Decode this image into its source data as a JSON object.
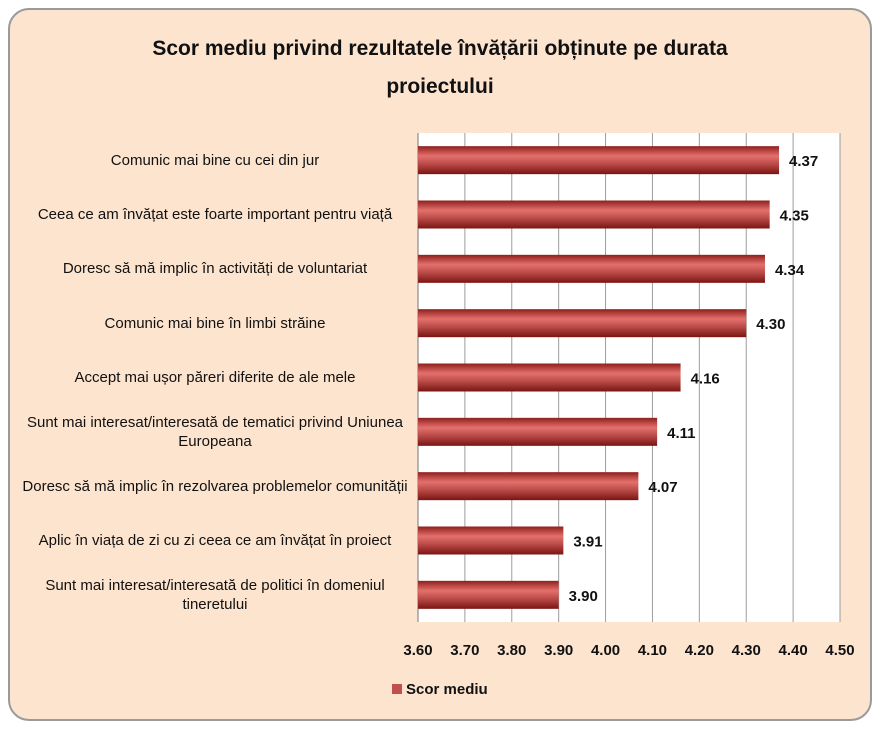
{
  "chart_data": {
    "type": "bar",
    "orientation": "horizontal",
    "title": "Scor mediu privind rezultatele învățării obținute pe durata proiectului",
    "categories": [
      "Comunic mai bine cu cei din jur",
      "Ceea ce am învățat este foarte important pentru viață",
      "Doresc să mă implic în activități de voluntariat",
      "Comunic mai bine în limbi străine",
      "Accept mai ușor păreri diferite de ale mele",
      "Sunt mai interesat/interesată de tematici privind Uniunea Europeana",
      "Doresc să mă implic în rezolvarea problemelor comunității",
      "Aplic în viața de zi cu zi ceea ce am învățat în proiect",
      "Sunt mai interesat/interesată de politici în domeniul tineretului"
    ],
    "series": [
      {
        "name": "Scor mediu",
        "color": "#c0504d",
        "values": [
          4.37,
          4.35,
          4.34,
          4.3,
          4.16,
          4.11,
          4.07,
          3.91,
          3.9
        ],
        "value_labels": [
          "4.37",
          "4.35",
          "4.34",
          "4.30",
          "4.16",
          "4.11",
          "4.07",
          "3.91",
          "3.90"
        ]
      }
    ],
    "xlim": [
      3.6,
      4.5
    ],
    "xticks": [
      {
        "value": 3.6,
        "label": "3.60"
      },
      {
        "value": 3.7,
        "label": "3.70"
      },
      {
        "value": 3.8,
        "label": "3.80"
      },
      {
        "value": 3.9,
        "label": "3.90"
      },
      {
        "value": 4.0,
        "label": "4.00"
      },
      {
        "value": 4.1,
        "label": "4.10"
      },
      {
        "value": 4.2,
        "label": "4.20"
      },
      {
        "value": 4.3,
        "label": "4.30"
      },
      {
        "value": 4.4,
        "label": "4.40"
      },
      {
        "value": 4.5,
        "label": "4.50"
      }
    ],
    "grid": true,
    "legend": "bottom"
  }
}
